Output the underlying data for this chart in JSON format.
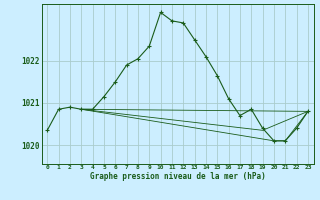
{
  "title": "Graphe pression niveau de la mer (hPa)",
  "background_color": "#cceeff",
  "grid_color": "#aacccc",
  "line_color": "#1a5c1a",
  "xlim": [
    -0.5,
    23.5
  ],
  "ylim": [
    1019.55,
    1023.35
  ],
  "yticks": [
    1020,
    1021,
    1022
  ],
  "xtick_labels": [
    "0",
    "1",
    "2",
    "3",
    "4",
    "5",
    "6",
    "7",
    "8",
    "9",
    "10",
    "11",
    "12",
    "13",
    "14",
    "15",
    "16",
    "17",
    "18",
    "19",
    "20",
    "21",
    "22",
    "23"
  ],
  "main_series": {
    "x": [
      0,
      1,
      2,
      3,
      4,
      5,
      6,
      7,
      8,
      9,
      10,
      11,
      12,
      13,
      14,
      15,
      16,
      17,
      18,
      19,
      20,
      21,
      22,
      23
    ],
    "y": [
      1020.35,
      1020.85,
      1020.9,
      1020.85,
      1020.85,
      1021.15,
      1021.5,
      1021.9,
      1022.05,
      1022.35,
      1023.15,
      1022.95,
      1022.9,
      1022.5,
      1022.1,
      1021.65,
      1021.1,
      1020.7,
      1020.85,
      1020.4,
      1020.1,
      1020.1,
      1020.4,
      1020.8
    ]
  },
  "line1": {
    "x": [
      3,
      23
    ],
    "y": [
      1020.85,
      1020.8
    ]
  },
  "line2": {
    "x": [
      3,
      19,
      23
    ],
    "y": [
      1020.85,
      1020.35,
      1020.8
    ]
  },
  "line3": {
    "x": [
      3,
      20,
      21,
      23
    ],
    "y": [
      1020.85,
      1020.1,
      1020.1,
      1020.8
    ]
  }
}
